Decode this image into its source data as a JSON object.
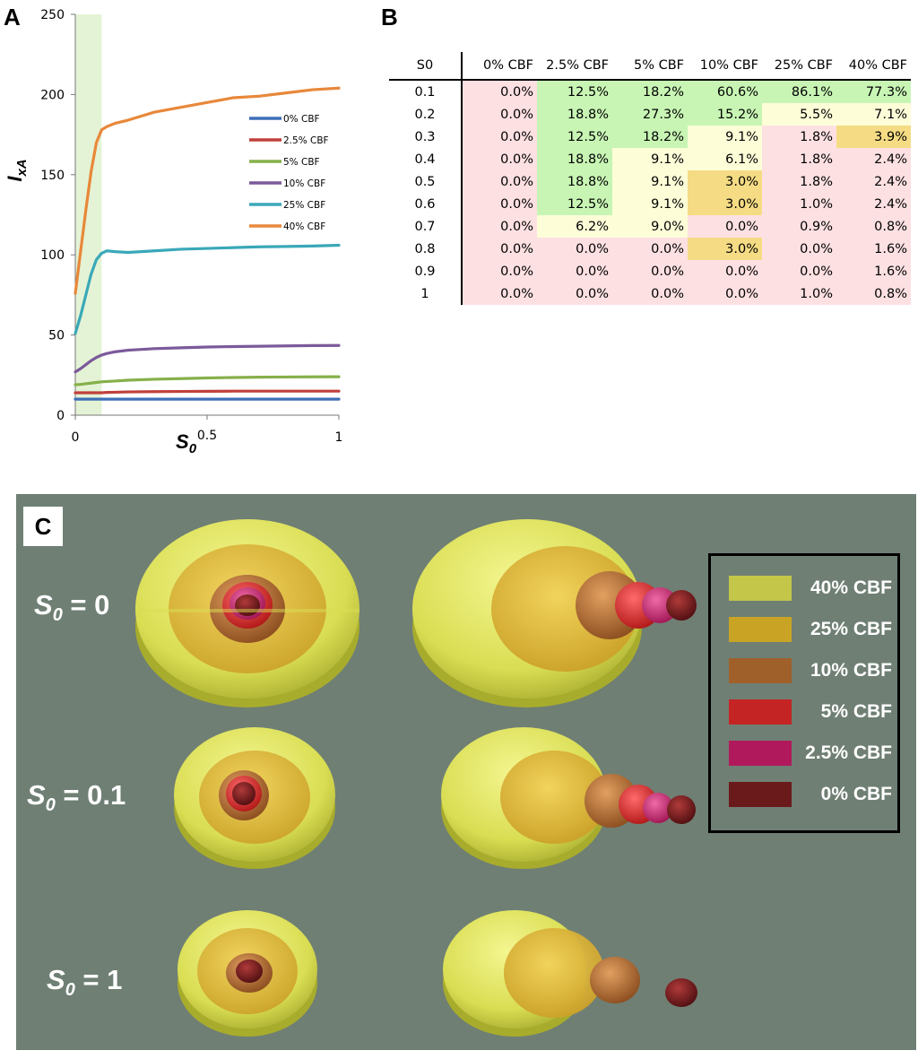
{
  "panel_labels": {
    "a": "A",
    "b": "B",
    "c": "C"
  },
  "chart_data": {
    "type": "line",
    "title": "",
    "xlabel": "S0",
    "ylabel": "IxA",
    "xlim": [
      0,
      1
    ],
    "ylim": [
      0,
      250
    ],
    "x_ticks": [
      "0",
      "0.5",
      "1"
    ],
    "y_ticks": [
      "0",
      "50",
      "100",
      "150",
      "200",
      "250"
    ],
    "shaded_region": [
      0,
      0.1
    ],
    "shaded_color": "#e4f3d6",
    "x": [
      0,
      0.02,
      0.04,
      0.06,
      0.08,
      0.1,
      0.12,
      0.15,
      0.2,
      0.3,
      0.4,
      0.5,
      0.6,
      0.7,
      0.8,
      0.9,
      1.0
    ],
    "series": [
      {
        "name": "0% CBF",
        "color": "#3f6fb8",
        "values": [
          10,
          10,
          10,
          10,
          10,
          10,
          10,
          10,
          10,
          10,
          10,
          10,
          10,
          10,
          10,
          10,
          10
        ]
      },
      {
        "name": "2.5% CBF",
        "color": "#c0403c",
        "values": [
          14,
          14,
          14,
          14,
          14,
          14,
          14.2,
          14.3,
          14.5,
          14.7,
          14.8,
          14.9,
          15,
          15,
          15,
          15,
          15
        ]
      },
      {
        "name": "5% CBF",
        "color": "#86b04a",
        "values": [
          19,
          19.2,
          19.6,
          20,
          20.4,
          20.8,
          21,
          21.3,
          21.8,
          22.4,
          22.8,
          23.2,
          23.5,
          23.7,
          23.8,
          23.9,
          24
        ]
      },
      {
        "name": "10% CBF",
        "color": "#7b5a9a",
        "values": [
          27,
          29,
          31.5,
          34,
          36,
          37.5,
          38.5,
          39.5,
          40.5,
          41.5,
          42,
          42.5,
          42.8,
          43,
          43.2,
          43.4,
          43.5
        ]
      },
      {
        "name": "25% CBF",
        "color": "#3aa8b8",
        "values": [
          51,
          62,
          75,
          88,
          97,
          101,
          102.5,
          102,
          101.5,
          102.5,
          103.5,
          104,
          104.5,
          105,
          105.2,
          105.5,
          106
        ]
      },
      {
        "name": "40% CBF",
        "color": "#e8883a",
        "values": [
          76,
          102,
          128,
          152,
          170,
          178,
          180,
          182,
          184,
          189,
          192,
          195,
          198,
          199,
          201,
          203,
          204
        ]
      }
    ]
  },
  "table": {
    "columns": [
      "S0",
      "0% CBF",
      "2.5% CBF",
      "5% CBF",
      "10% CBF",
      "25% CBF",
      "40% CBF"
    ],
    "rows": [
      {
        "s0": "0.1",
        "cells": [
          {
            "v": "0.0%",
            "c": "pink"
          },
          {
            "v": "12.5%",
            "c": "green"
          },
          {
            "v": "18.2%",
            "c": "green"
          },
          {
            "v": "60.6%",
            "c": "green"
          },
          {
            "v": "86.1%",
            "c": "green"
          },
          {
            "v": "77.3%",
            "c": "green"
          }
        ]
      },
      {
        "s0": "0.2",
        "cells": [
          {
            "v": "0.0%",
            "c": "pink"
          },
          {
            "v": "18.8%",
            "c": "green"
          },
          {
            "v": "27.3%",
            "c": "green"
          },
          {
            "v": "15.2%",
            "c": "green"
          },
          {
            "v": "5.5%",
            "c": "ltyellow"
          },
          {
            "v": "7.1%",
            "c": "ltyellow"
          }
        ]
      },
      {
        "s0": "0.3",
        "cells": [
          {
            "v": "0.0%",
            "c": "pink"
          },
          {
            "v": "12.5%",
            "c": "green"
          },
          {
            "v": "18.2%",
            "c": "green"
          },
          {
            "v": "9.1%",
            "c": "ltyellow"
          },
          {
            "v": "1.8%",
            "c": "pink"
          },
          {
            "v": "3.9%",
            "c": "gold"
          }
        ]
      },
      {
        "s0": "0.4",
        "cells": [
          {
            "v": "0.0%",
            "c": "pink"
          },
          {
            "v": "18.8%",
            "c": "green"
          },
          {
            "v": "9.1%",
            "c": "ltyellow"
          },
          {
            "v": "6.1%",
            "c": "ltyellow"
          },
          {
            "v": "1.8%",
            "c": "pink"
          },
          {
            "v": "2.4%",
            "c": "pink"
          }
        ]
      },
      {
        "s0": "0.5",
        "cells": [
          {
            "v": "0.0%",
            "c": "pink"
          },
          {
            "v": "18.8%",
            "c": "green"
          },
          {
            "v": "9.1%",
            "c": "ltyellow"
          },
          {
            "v": "3.0%",
            "c": "gold"
          },
          {
            "v": "1.8%",
            "c": "pink"
          },
          {
            "v": "2.4%",
            "c": "pink"
          }
        ]
      },
      {
        "s0": "0.6",
        "cells": [
          {
            "v": "0.0%",
            "c": "pink"
          },
          {
            "v": "12.5%",
            "c": "green"
          },
          {
            "v": "9.1%",
            "c": "ltyellow"
          },
          {
            "v": "3.0%",
            "c": "gold"
          },
          {
            "v": "1.0%",
            "c": "pink"
          },
          {
            "v": "2.4%",
            "c": "pink"
          }
        ]
      },
      {
        "s0": "0.7",
        "cells": [
          {
            "v": "0.0%",
            "c": "pink"
          },
          {
            "v": "6.2%",
            "c": "ltyellow"
          },
          {
            "v": "9.0%",
            "c": "ltyellow"
          },
          {
            "v": "0.0%",
            "c": "pink"
          },
          {
            "v": "0.9%",
            "c": "pink"
          },
          {
            "v": "0.8%",
            "c": "pink"
          }
        ]
      },
      {
        "s0": "0.8",
        "cells": [
          {
            "v": "0.0%",
            "c": "pink"
          },
          {
            "v": "0.0%",
            "c": "pink"
          },
          {
            "v": "0.0%",
            "c": "pink"
          },
          {
            "v": "3.0%",
            "c": "gold"
          },
          {
            "v": "0.0%",
            "c": "pink"
          },
          {
            "v": "1.6%",
            "c": "pink"
          }
        ]
      },
      {
        "s0": "0.9",
        "cells": [
          {
            "v": "0.0%",
            "c": "pink"
          },
          {
            "v": "0.0%",
            "c": "pink"
          },
          {
            "v": "0.0%",
            "c": "pink"
          },
          {
            "v": "0.0%",
            "c": "pink"
          },
          {
            "v": "0.0%",
            "c": "pink"
          },
          {
            "v": "1.6%",
            "c": "pink"
          }
        ]
      },
      {
        "s0": "1",
        "cells": [
          {
            "v": "0.0%",
            "c": "pink"
          },
          {
            "v": "0.0%",
            "c": "pink"
          },
          {
            "v": "0.0%",
            "c": "pink"
          },
          {
            "v": "0.0%",
            "c": "pink"
          },
          {
            "v": "1.0%",
            "c": "pink"
          },
          {
            "v": "0.8%",
            "c": "pink"
          }
        ]
      }
    ]
  },
  "panel_c": {
    "background": "#6f7f74",
    "row_labels": [
      {
        "prefix": "S",
        "sub": "0",
        "suffix": " = 0"
      },
      {
        "prefix": "S",
        "sub": "0",
        "suffix": " = 0.1"
      },
      {
        "prefix": "S",
        "sub": "0",
        "suffix": " = 1"
      }
    ],
    "legend": [
      {
        "label": "40% CBF",
        "color": "#c3c649"
      },
      {
        "label": "25% CBF",
        "color": "#c9a424"
      },
      {
        "label": "10% CBF",
        "color": "#a0602a"
      },
      {
        "label": "5% CBF",
        "color": "#c42424"
      },
      {
        "label": "2.5% CBF",
        "color": "#b01a5c"
      },
      {
        "label": "0% CBF",
        "color": "#6b1a1c"
      }
    ]
  }
}
